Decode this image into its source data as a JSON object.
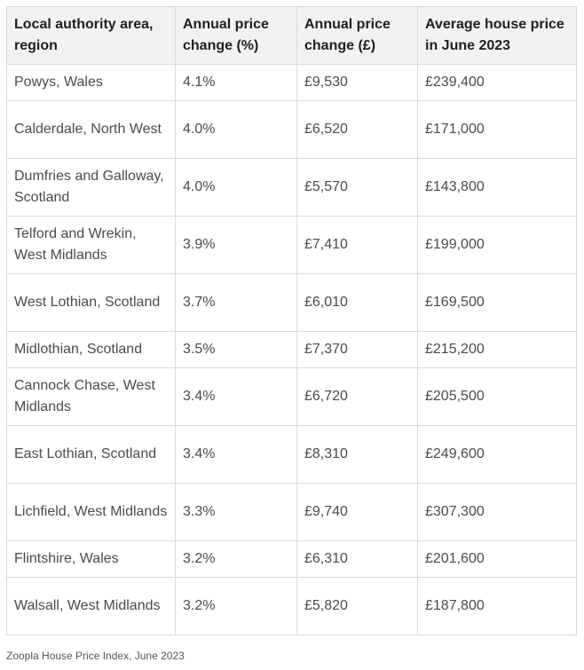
{
  "table": {
    "headers": [
      "Local authority area, region",
      "Annual price change (%)",
      "Annual price change (£)",
      "Average house price in June 2023"
    ],
    "rows": [
      {
        "area": "Powys, Wales",
        "pct": "4.1%",
        "gbp": "£9,530",
        "avg": "£239,400"
      },
      {
        "area": "Calderdale, North West",
        "pct": "4.0%",
        "gbp": "£6,520",
        "avg": "£171,000"
      },
      {
        "area": "Dumfries and Galloway, Scotland",
        "pct": "4.0%",
        "gbp": "£5,570",
        "avg": "£143,800"
      },
      {
        "area": "Telford and Wrekin, West Midlands",
        "pct": "3.9%",
        "gbp": "£7,410",
        "avg": "£199,000"
      },
      {
        "area": "West Lothian, Scotland",
        "pct": "3.7%",
        "gbp": "£6,010",
        "avg": "£169,500"
      },
      {
        "area": "Midlothian, Scotland",
        "pct": "3.5%",
        "gbp": "£7,370",
        "avg": "£215,200"
      },
      {
        "area": "Cannock Chase, West Midlands",
        "pct": "3.4%",
        "gbp": "£6,720",
        "avg": "£205,500"
      },
      {
        "area": "East Lothian, Scotland",
        "pct": "3.4%",
        "gbp": "£8,310",
        "avg": "£249,600"
      },
      {
        "area": "Lichfield, West Midlands",
        "pct": "3.3%",
        "gbp": "£9,740",
        "avg": "£307,300"
      },
      {
        "area": "Flintshire, Wales",
        "pct": "3.2%",
        "gbp": "£6,310",
        "avg": "£201,600"
      },
      {
        "area": "Walsall, West Midlands",
        "pct": "3.2%",
        "gbp": "£5,820",
        "avg": "£187,800"
      }
    ]
  },
  "caption": "Zoopla House Price Index, June 2023"
}
